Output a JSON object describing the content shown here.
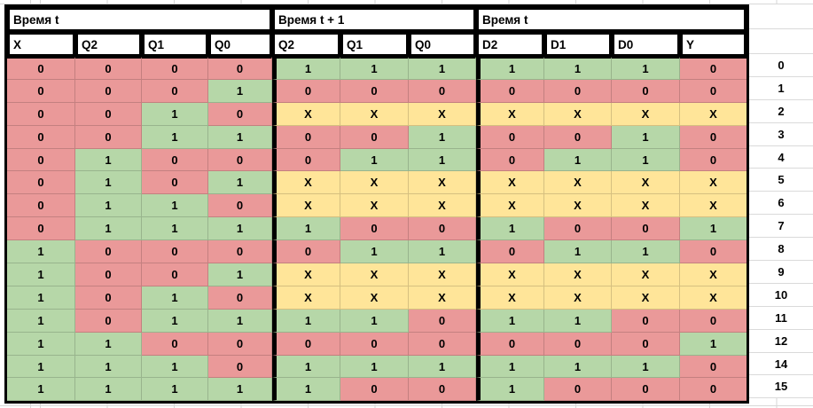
{
  "table": {
    "sections": [
      {
        "title": "Время t",
        "columns": [
          "X",
          "Q2",
          "Q1",
          "Q0"
        ]
      },
      {
        "title": "Время t + 1",
        "columns": [
          "Q2",
          "Q1",
          "Q0"
        ]
      },
      {
        "title": "Время t",
        "columns": [
          "D2",
          "D1",
          "D0",
          "Y"
        ]
      }
    ],
    "rows": [
      {
        "cells": [
          "0",
          "0",
          "0",
          "0",
          "1",
          "1",
          "1",
          "1",
          "1",
          "1",
          "0"
        ],
        "label": "0"
      },
      {
        "cells": [
          "0",
          "0",
          "0",
          "1",
          "0",
          "0",
          "0",
          "0",
          "0",
          "0",
          "0"
        ],
        "label": "1"
      },
      {
        "cells": [
          "0",
          "0",
          "1",
          "0",
          "X",
          "X",
          "X",
          "X",
          "X",
          "X",
          "X"
        ],
        "label": "2"
      },
      {
        "cells": [
          "0",
          "0",
          "1",
          "1",
          "0",
          "0",
          "1",
          "0",
          "0",
          "1",
          "0"
        ],
        "label": "3"
      },
      {
        "cells": [
          "0",
          "1",
          "0",
          "0",
          "0",
          "1",
          "1",
          "0",
          "1",
          "1",
          "0"
        ],
        "label": "4"
      },
      {
        "cells": [
          "0",
          "1",
          "0",
          "1",
          "X",
          "X",
          "X",
          "X",
          "X",
          "X",
          "X"
        ],
        "label": "5"
      },
      {
        "cells": [
          "0",
          "1",
          "1",
          "0",
          "X",
          "X",
          "X",
          "X",
          "X",
          "X",
          "X"
        ],
        "label": "6"
      },
      {
        "cells": [
          "0",
          "1",
          "1",
          "1",
          "1",
          "0",
          "0",
          "1",
          "0",
          "0",
          "1"
        ],
        "label": "7"
      },
      {
        "cells": [
          "1",
          "0",
          "0",
          "0",
          "0",
          "1",
          "1",
          "0",
          "1",
          "1",
          "0"
        ],
        "label": "8"
      },
      {
        "cells": [
          "1",
          "0",
          "0",
          "1",
          "X",
          "X",
          "X",
          "X",
          "X",
          "X",
          "X"
        ],
        "label": "9"
      },
      {
        "cells": [
          "1",
          "0",
          "1",
          "0",
          "X",
          "X",
          "X",
          "X",
          "X",
          "X",
          "X"
        ],
        "label": "10"
      },
      {
        "cells": [
          "1",
          "0",
          "1",
          "1",
          "1",
          "1",
          "0",
          "1",
          "1",
          "0",
          "0"
        ],
        "label": "11"
      },
      {
        "cells": [
          "1",
          "1",
          "0",
          "0",
          "0",
          "0",
          "0",
          "0",
          "0",
          "0",
          "1"
        ],
        "label": "12"
      },
      {
        "cells": [
          "1",
          "1",
          "1",
          "0",
          "1",
          "1",
          "1",
          "1",
          "1",
          "1",
          "0"
        ],
        "label": "14"
      },
      {
        "cells": [
          "1",
          "1",
          "1",
          "1",
          "1",
          "0",
          "0",
          "1",
          "0",
          "0",
          "0"
        ],
        "label": "15"
      }
    ],
    "value_colors": {
      "0": "#ea9999",
      "1": "#b6d7a8",
      "X": "#ffe599"
    },
    "border_color": "#000000",
    "gridline_color": "#d6d6d6"
  }
}
